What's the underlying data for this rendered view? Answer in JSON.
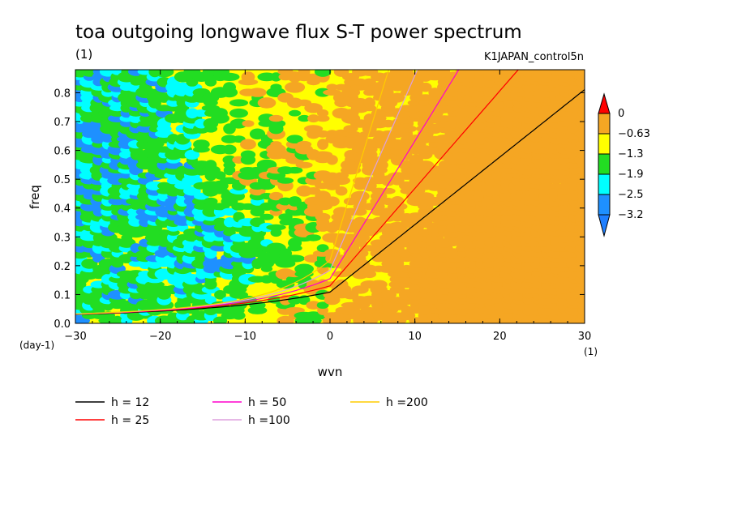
{
  "chart_data": {
    "type": "heatmap",
    "title": "toa outgoing longwave flux S-T power spectrum",
    "subtitle": "(1)",
    "dataset_label": "K1JAPAN_control5n",
    "xlabel": "wvn",
    "xunit": "(1)",
    "ylabel": "freq",
    "yunit": "(day-1)",
    "xlim": [
      -30,
      30
    ],
    "ylim": [
      0,
      0.88
    ],
    "xticks": [
      "-30",
      "-20",
      "-10",
      "0",
      "10",
      "20",
      "30"
    ],
    "yticks": [
      "0.0",
      "0.1",
      "0.2",
      "0.3",
      "0.4",
      "0.5",
      "0.6",
      "0.7",
      "0.8"
    ],
    "colorbar": {
      "labels": [
        "0",
        "-0.63",
        "-1.3",
        "-1.9",
        "-2.5",
        "-3.2"
      ],
      "colors": [
        "#f5a623",
        "#ffff00",
        "#22dd22",
        "#00ffff",
        "#1e90ff"
      ],
      "over_color": "#ff0000",
      "under_color": "#1e7fff"
    },
    "dispersion_curves": [
      {
        "name": "h = 12",
        "h": 12,
        "color": "#000000"
      },
      {
        "name": "h = 25",
        "h": 25,
        "color": "#ff0000"
      },
      {
        "name": "h = 50",
        "h": 50,
        "color": "#ff00cc"
      },
      {
        "name": "h =100",
        "h": 100,
        "color": "#dda0dd"
      },
      {
        "name": "h =200",
        "h": 200,
        "color": "#ffcc00"
      }
    ],
    "field_summary": "Power is highest (orange, about -0.63 to 0) at positive wavenumbers and lowest (green/cyan, below -1.9) at negative wavenumbers near freq 0.1-0.4",
    "grid": false
  }
}
